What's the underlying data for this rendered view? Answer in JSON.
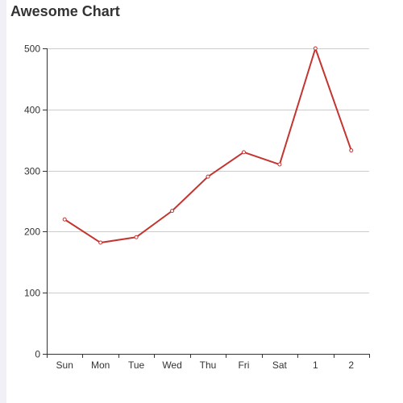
{
  "chart_data": {
    "type": "line",
    "title": "Awesome Chart",
    "categories": [
      "Sun",
      "Mon",
      "Tue",
      "Wed",
      "Thu",
      "Fri",
      "Sat",
      "1",
      "2"
    ],
    "series": [
      {
        "values": [
          220,
          182,
          191,
          234,
          290,
          330,
          310,
          500,
          333
        ]
      }
    ],
    "yticks": [
      0,
      100,
      200,
      300,
      400,
      500
    ],
    "ylim": [
      0,
      500
    ],
    "xlabel": "",
    "ylabel": "",
    "grid": true,
    "legend": "none",
    "colors": {
      "line": "#c23531",
      "axis": "#333333",
      "grid": "#cccccc",
      "text": "#333333"
    }
  }
}
